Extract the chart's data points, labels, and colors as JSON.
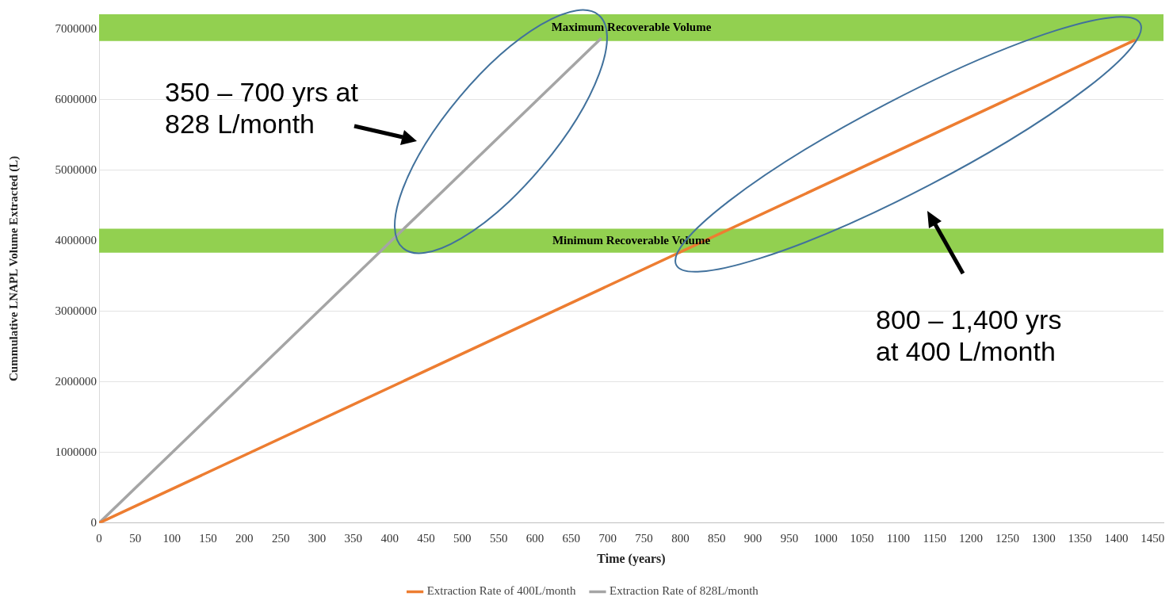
{
  "chart_data": {
    "type": "line",
    "xlabel": "Time (years)",
    "ylabel": "Cummulative LNAPL Volume Extracted (L)",
    "series": [
      {
        "name": "Extraction Rate of 400L/month",
        "color": "#ed7d31",
        "x": [
          0,
          1425
        ],
        "values": [
          0,
          6840000
        ]
      },
      {
        "name": "Extraction Rate of 828L/month",
        "color": "#a5a5a5",
        "x": [
          0,
          690
        ],
        "values": [
          0,
          6860000
        ]
      }
    ],
    "xlim": [
      0,
      1465
    ],
    "xticks": [
      0,
      50,
      100,
      150,
      200,
      250,
      300,
      350,
      400,
      450,
      500,
      550,
      600,
      650,
      700,
      750,
      800,
      850,
      900,
      950,
      1000,
      1050,
      1100,
      1150,
      1200,
      1250,
      1300,
      1350,
      1400,
      1450
    ],
    "ylim": [
      0,
      7210000
    ],
    "yticks": [
      0,
      1000000,
      2000000,
      3000000,
      4000000,
      5000000,
      6000000,
      7000000
    ],
    "bands": [
      {
        "axis": "y",
        "from": 6830000,
        "to": 7210000,
        "label": "Maximum Recoverable Volume",
        "color": "#92d050"
      },
      {
        "axis": "y",
        "from": 3830000,
        "to": 4170000,
        "label": "Minimum Recoverable Volume",
        "color": "#92d050"
      }
    ],
    "annotations": [
      "350 – 700 yrs at 828 L/month",
      "800 – 1,400 yrs at 400 L/month"
    ],
    "grid": "y",
    "legend": "bottom",
    "marker": "none",
    "line_style": "solid"
  }
}
